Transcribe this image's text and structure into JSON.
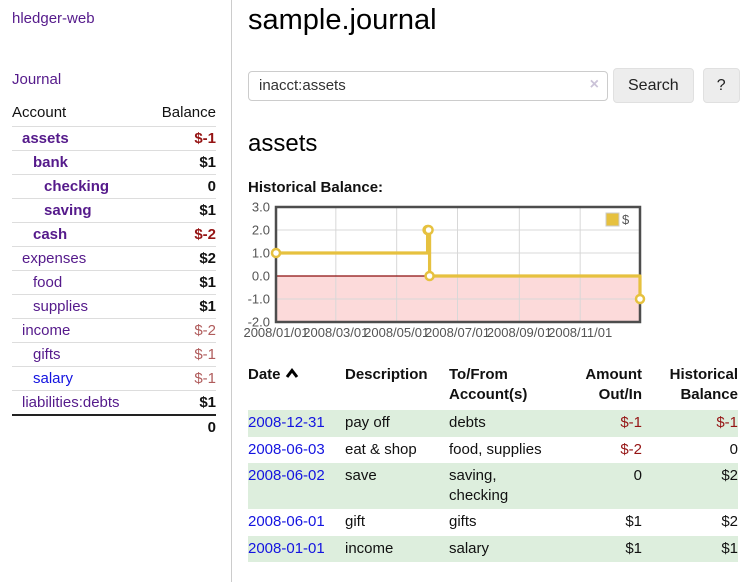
{
  "app": {
    "title": "hledger-web"
  },
  "colors": {
    "link_purple": "#551a8b",
    "link_blue": "#1414e0",
    "negative_strong": "#951414",
    "negative_muted": "#b05c5c",
    "row_stripe_green": "#ddeedd",
    "chart_line": "#e6c13f",
    "chart_negative_region": "#fcdada",
    "chart_zero_line": "#8c0d0d",
    "chart_grid": "#d8d8d8",
    "chart_border": "#4d4d4d",
    "chart_text": "#545454"
  },
  "sidebar": {
    "journal_link": "Journal",
    "accounts_table": {
      "headers": [
        "Account",
        "Balance"
      ],
      "rows": [
        {
          "name": "assets",
          "level": 1,
          "bold": true,
          "balance": "$-1",
          "neg": "strong"
        },
        {
          "name": "bank",
          "level": 2,
          "bold": true,
          "balance": "$1"
        },
        {
          "name": "checking",
          "level": 3,
          "bold": true,
          "balance": "0"
        },
        {
          "name": "saving",
          "level": 3,
          "bold": true,
          "balance": "$1"
        },
        {
          "name": "cash",
          "level": 2,
          "bold": true,
          "balance": "$-2",
          "neg": "strong"
        },
        {
          "name": "expenses",
          "level": 1,
          "bold": false,
          "balance": "$2"
        },
        {
          "name": "food",
          "level": 2,
          "bold": false,
          "balance": "$1"
        },
        {
          "name": "supplies",
          "level": 2,
          "bold": false,
          "balance": "$1"
        },
        {
          "name": "income",
          "level": 1,
          "bold": false,
          "balance": "$-2",
          "neg": "muted"
        },
        {
          "name": "gifts",
          "level": 2,
          "bold": false,
          "balance": "$-1",
          "neg": "muted"
        },
        {
          "name": "salary",
          "level": 2,
          "bold": false,
          "balance": "$-1",
          "neg": "muted",
          "link_style": "unvisited"
        },
        {
          "name": "liabilities:debts",
          "level": 1,
          "bold": false,
          "balance": "$1"
        }
      ],
      "total": "0"
    }
  },
  "main": {
    "title": "sample.journal",
    "search": {
      "value": "inacct:assets",
      "clear_icon": "×",
      "button": "Search",
      "help_button": "?"
    },
    "account_heading": "assets",
    "chart_label": "Historical Balance:"
  },
  "chart_data": {
    "type": "line",
    "title": "Historical Balance:",
    "step": true,
    "x_domain_days": [
      0,
      365
    ],
    "ylim": [
      -2,
      3
    ],
    "grid": true,
    "negative_region_shaded": true,
    "legend_position": "top-right",
    "y_ticks": [
      "3.0",
      "2.0",
      "1.0",
      "0.0",
      "-1.0",
      "-2.0"
    ],
    "x_ticks": [
      {
        "label": "2008/01/01",
        "day": 0
      },
      {
        "label": "2008/03/01",
        "day": 60
      },
      {
        "label": "2008/05/01",
        "day": 121
      },
      {
        "label": "2008/07/01",
        "day": 182
      },
      {
        "label": "2008/09/01",
        "day": 244
      },
      {
        "label": "2008/11/01",
        "day": 305
      }
    ],
    "series": [
      {
        "name": "$",
        "points": [
          {
            "date": "2008-01-01",
            "day": 0,
            "value": 1
          },
          {
            "date": "2008-06-01",
            "day": 152,
            "value": 2
          },
          {
            "date": "2008-06-02",
            "day": 153,
            "value": 2
          },
          {
            "date": "2008-06-03",
            "day": 154,
            "value": 0
          },
          {
            "date": "2008-12-31",
            "day": 365,
            "value": -1
          }
        ]
      }
    ]
  },
  "register_table": {
    "headers": [
      "Date",
      "Description",
      "To/From Account(s)",
      "Amount Out/In",
      "Historical Balance"
    ],
    "rows": [
      {
        "date": "2008-12-31",
        "description": "pay off",
        "accounts": "debts",
        "amount": "$-1",
        "amount_negative": true,
        "balance": "$-1",
        "balance_negative": true
      },
      {
        "date": "2008-06-03",
        "description": "eat & shop",
        "accounts": "food, supplies",
        "amount": "$-2",
        "amount_negative": true,
        "balance": "0",
        "balance_negative": false
      },
      {
        "date": "2008-06-02",
        "description": "save",
        "accounts": "saving, checking",
        "amount": "0",
        "amount_negative": false,
        "balance": "$2",
        "balance_negative": false
      },
      {
        "date": "2008-06-01",
        "description": "gift",
        "accounts": "gifts",
        "amount": "$1",
        "amount_negative": false,
        "balance": "$2",
        "balance_negative": false
      },
      {
        "date": "2008-01-01",
        "description": "income",
        "accounts": "salary",
        "amount": "$1",
        "amount_negative": false,
        "balance": "$1",
        "balance_negative": false
      }
    ]
  }
}
